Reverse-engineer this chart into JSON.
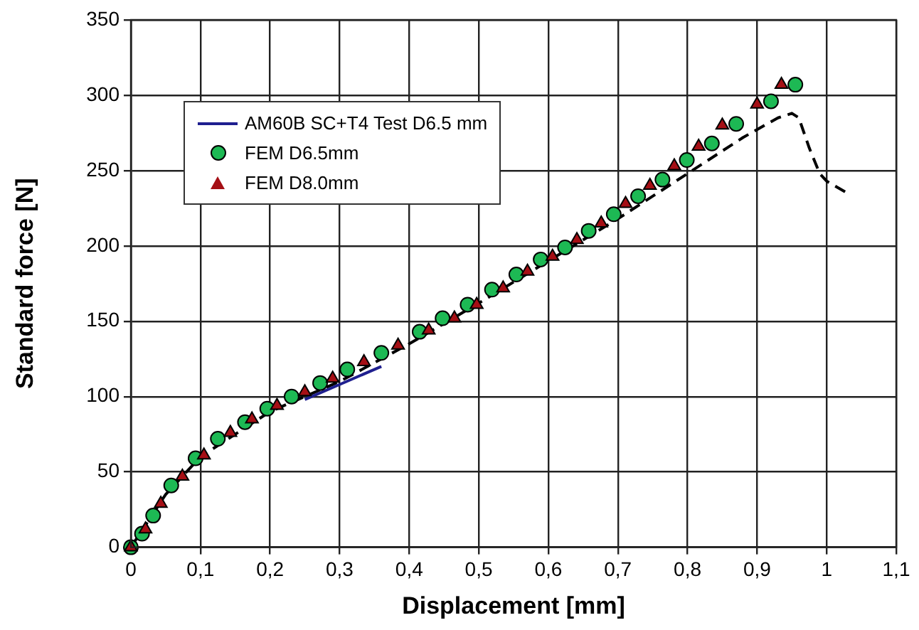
{
  "chart_data": {
    "type": "scatter",
    "xlabel": "Displacement [mm]",
    "ylabel": "Standard force [N]",
    "xlim": [
      0,
      1.1
    ],
    "xticks": [
      0,
      {
        "value": 0.1,
        "label": "0,1"
      },
      {
        "value": 0.2,
        "label": "0,2"
      },
      {
        "value": 0.3,
        "label": "0,3"
      },
      {
        "value": 0.4,
        "label": "0,4"
      },
      {
        "value": 0.5,
        "label": "0,5"
      },
      {
        "value": 0.6,
        "label": "0,6"
      },
      {
        "value": 0.7,
        "label": "0,7"
      },
      {
        "value": 0.8,
        "label": "0,8"
      },
      {
        "value": 0.9,
        "label": "0,9"
      },
      1,
      {
        "value": 1.1,
        "label": "1,1"
      }
    ],
    "ylim": [
      0,
      350
    ],
    "yticks": [
      0,
      50,
      100,
      150,
      200,
      250,
      300,
      350
    ],
    "grid": true,
    "legend": "top left",
    "series": [
      {
        "type": "line",
        "color": "#000000",
        "line_style": "dashed",
        "marker": "none",
        "x": [
          0,
          0.05,
          0.1,
          0.2,
          0.3,
          0.4,
          0.5,
          0.6,
          0.7,
          0.8,
          0.88,
          0.93,
          0.95,
          0.96,
          0.975,
          0.99,
          1.0,
          1.03
        ],
        "values": [
          0,
          35,
          60,
          90,
          110,
          135,
          162,
          190,
          218,
          248,
          272,
          285,
          288,
          285,
          265,
          248,
          243,
          235
        ]
      },
      {
        "type": "line",
        "name": "AM60B SC+T4 Test D6.5 mm",
        "color": "#1f1f8f",
        "line_style": "solid",
        "marker": "none",
        "x": [
          0.25,
          0.3,
          0.36
        ],
        "values": [
          98,
          108,
          120
        ]
      },
      {
        "type": "scatter",
        "name": "FEM D6.5mm",
        "color": "#1db954",
        "marker": "circle",
        "x": [
          0,
          0.016,
          0.032,
          0.058,
          0.093,
          0.125,
          0.164,
          0.196,
          0.231,
          0.272,
          0.311,
          0.36,
          0.415,
          0.448,
          0.484,
          0.519,
          0.554,
          0.589,
          0.624,
          0.658,
          0.694,
          0.729,
          0.764,
          0.799,
          0.835,
          0.87,
          0.92,
          0.955
        ],
        "values": [
          0,
          9,
          21,
          41,
          59,
          72,
          83,
          92,
          100,
          109,
          118,
          129,
          143,
          152,
          161,
          171,
          181,
          191,
          199,
          210,
          221,
          233,
          244,
          257,
          268,
          281,
          296,
          307
        ]
      },
      {
        "type": "scatter",
        "name": "FEM D8.0mm",
        "color": "#a50f15",
        "marker": "triangle",
        "x": [
          0,
          0.021,
          0.043,
          0.074,
          0.105,
          0.143,
          0.174,
          0.21,
          0.25,
          0.29,
          0.335,
          0.384,
          0.428,
          0.465,
          0.497,
          0.535,
          0.57,
          0.606,
          0.641,
          0.676,
          0.711,
          0.746,
          0.781,
          0.816,
          0.85,
          0.9,
          0.935
        ],
        "values": [
          0,
          12,
          29,
          47,
          61,
          76,
          85,
          94,
          103,
          112,
          123,
          134,
          144,
          152,
          161,
          172,
          183,
          193,
          204,
          215,
          228,
          240,
          253,
          266,
          280,
          294,
          307
        ]
      }
    ]
  }
}
